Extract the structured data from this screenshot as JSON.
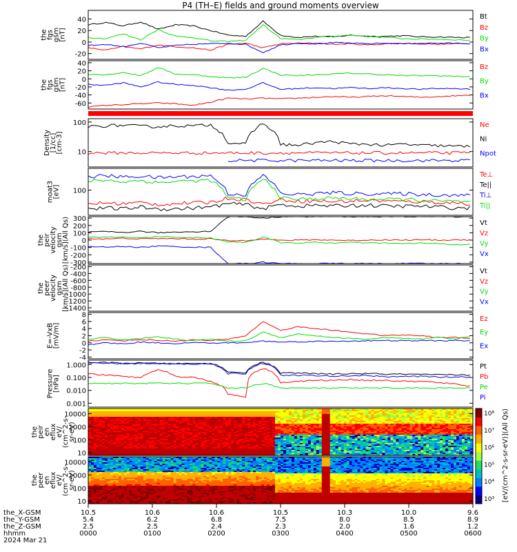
{
  "title": "P4 (TH–E) fields and ground moments overview",
  "colors": {
    "black": "#000000",
    "red": "#ff0000",
    "green": "#00dd00",
    "blue": "#0000ff"
  },
  "chart_data": [
    {
      "type": "line",
      "panel": "fgs_gsm_1",
      "ylabel": [
        "the",
        "fgs",
        "gsm",
        "[nT]"
      ],
      "yticks": [
        "40",
        "20",
        "0",
        "-20"
      ],
      "ylim": [
        -30,
        55
      ],
      "series": [
        {
          "name": "Bt",
          "color": "red_black",
          "values": [
            30,
            34,
            28,
            35,
            22,
            30,
            28,
            20,
            12,
            10,
            36,
            12,
            8,
            10,
            9,
            12,
            10,
            10,
            11,
            9,
            9,
            8,
            8
          ]
        },
        {
          "name": "Bz",
          "color": "red",
          "values": [
            -10,
            -14,
            -8,
            -12,
            -5,
            -8,
            -10,
            -14,
            -4,
            -2,
            -10,
            -3,
            -2,
            -2,
            -4,
            -3,
            -5,
            -3,
            -2,
            -3,
            -4,
            -3,
            -2
          ]
        },
        {
          "name": "By",
          "color": "green",
          "values": [
            8,
            6,
            14,
            4,
            22,
            10,
            8,
            2,
            1,
            3,
            30,
            6,
            4,
            8,
            10,
            12,
            10,
            8,
            6,
            5,
            5,
            4,
            3
          ]
        },
        {
          "name": "Bx",
          "color": "blue",
          "values": [
            -6,
            -4,
            -8,
            -2,
            -10,
            -6,
            -4,
            -3,
            -2,
            -4,
            -18,
            -5,
            -2,
            -3,
            -1,
            -2,
            -3,
            -2,
            -3,
            -2,
            -2,
            -2,
            -3
          ]
        }
      ],
      "legend": [
        "Bt",
        "Bz",
        "By",
        "Bx"
      ]
    },
    {
      "type": "line",
      "panel": "fgs_gsm_2",
      "ylabel": [
        "the",
        "fgs",
        "gsm",
        "[nT]"
      ],
      "yticks": [
        "40",
        "20",
        "0",
        "-20",
        "-40",
        "-60"
      ],
      "ylim": [
        -75,
        45
      ],
      "legend": [
        "Bz",
        "By",
        "Bx"
      ],
      "series": [
        {
          "name": "Bz",
          "values": [
            -70,
            -66,
            -64,
            -62,
            -60,
            -62,
            -66,
            -58,
            -48,
            -50,
            -48,
            -50,
            -48,
            -46,
            -44,
            -46,
            -44,
            -42,
            -44,
            -46,
            -44,
            -42,
            -40
          ]
        },
        {
          "name": "By",
          "values": [
            12,
            10,
            16,
            8,
            28,
            12,
            10,
            6,
            2,
            4,
            26,
            10,
            8,
            10,
            12,
            14,
            12,
            10,
            8,
            8,
            8,
            6,
            6
          ]
        },
        {
          "name": "Bx",
          "values": [
            -14,
            -16,
            -10,
            -20,
            -8,
            -14,
            -16,
            -22,
            -28,
            -26,
            -10,
            -26,
            -24,
            -22,
            -24,
            -22,
            -24,
            -22,
            -24,
            -26,
            -24,
            -24,
            -26
          ]
        }
      ]
    },
    {
      "type": "line",
      "panel": "density",
      "ylabel": [
        "Density",
        "[1/cc]",
        "[cm-3]"
      ],
      "log": true,
      "yticks": [
        "100",
        "10"
      ],
      "ylim": [
        3,
        130
      ],
      "legend": [
        "Ne",
        "Ni",
        "Npot"
      ],
      "series": [
        {
          "name": "Ne",
          "values": [
            9,
            9,
            9,
            9,
            9,
            9,
            9,
            9,
            9,
            9,
            9,
            9,
            9,
            9,
            9,
            9,
            9,
            9,
            9,
            9,
            9,
            9,
            9
          ]
        },
        {
          "name": "Ni",
          "values": [
            70,
            75,
            78,
            72,
            70,
            76,
            74,
            80,
            20,
            18,
            90,
            18,
            16,
            20,
            22,
            18,
            18,
            16,
            18,
            16,
            16,
            15,
            15
          ]
        },
        {
          "name": "Npot",
          "values": [
            null,
            null,
            null,
            null,
            null,
            null,
            null,
            null,
            5,
            5,
            5,
            5,
            5,
            5,
            5,
            5,
            5,
            5,
            5,
            5,
            5,
            5,
            5
          ]
        }
      ]
    },
    {
      "type": "line",
      "panel": "temperature",
      "ylabel": [
        "moat3",
        "[eV]"
      ],
      "log": true,
      "yticks": [
        "100"
      ],
      "ylim": [
        20,
        400
      ],
      "legend": [
        "Te⊥",
        "Te||",
        "Ti⊥",
        "Ti||"
      ],
      "series": [
        {
          "name": "Te⊥",
          "values": [
            42,
            44,
            42,
            45,
            40,
            42,
            44,
            46,
            60,
            55,
            40,
            55,
            50,
            50,
            48,
            50,
            52,
            50,
            48,
            48,
            46,
            44,
            42
          ]
        },
        {
          "name": "Te||",
          "values": [
            30,
            32,
            30,
            34,
            30,
            30,
            32,
            34,
            42,
            40,
            30,
            40,
            36,
            38,
            36,
            38,
            38,
            36,
            36,
            36,
            34,
            32,
            32
          ]
        },
        {
          "name": "Ti⊥",
          "values": [
            240,
            250,
            230,
            245,
            220,
            235,
            240,
            250,
            80,
            75,
            250,
            80,
            75,
            80,
            85,
            80,
            80,
            78,
            80,
            76,
            74,
            72,
            70
          ]
        },
        {
          "name": "Ti||",
          "values": [
            180,
            190,
            170,
            185,
            160,
            175,
            180,
            190,
            60,
            55,
            200,
            60,
            55,
            58,
            60,
            58,
            56,
            55,
            56,
            52,
            50,
            48,
            46
          ]
        }
      ]
    },
    {
      "type": "line",
      "panel": "pseudo_velocity",
      "ylabel": [
        "the",
        "peir",
        "velocity",
        "gsm",
        "[km/s](All Qs)"
      ],
      "yticks": [
        "300",
        "200",
        "100",
        "0",
        "-100",
        "-200",
        "-300"
      ],
      "ylim": [
        -320,
        320
      ],
      "legend": [
        "Vt",
        "Vz",
        "Vy",
        "Vx"
      ],
      "series": [
        {
          "name": "Vt",
          "values": [
            110,
            115,
            105,
            120,
            100,
            110,
            115,
            120,
            320,
            320,
            300,
            320,
            320,
            320,
            320,
            320,
            320,
            320,
            320,
            320,
            320,
            320,
            320
          ]
        },
        {
          "name": "Vz",
          "values": [
            20,
            15,
            25,
            18,
            22,
            20,
            15,
            18,
            -10,
            -5,
            20,
            -5,
            0,
            5,
            0,
            -5,
            0,
            5,
            0,
            5,
            0,
            5,
            0
          ]
        },
        {
          "name": "Vy",
          "values": [
            40,
            35,
            45,
            30,
            50,
            40,
            35,
            30,
            -20,
            -30,
            40,
            -30,
            -40,
            -30,
            -40,
            -30,
            -40,
            -40,
            -50,
            -40,
            -50,
            -60,
            -60
          ]
        },
        {
          "name": "Vx",
          "values": [
            -90,
            -95,
            -85,
            -100,
            -80,
            -90,
            -95,
            -100,
            -320,
            -320,
            -300,
            -320,
            -320,
            -320,
            -320,
            -320,
            -320,
            -320,
            -320,
            -320,
            -320,
            -320,
            -320
          ]
        }
      ]
    },
    {
      "type": "line",
      "panel": "peer_velocity",
      "ylabel": [
        "the",
        "peer",
        "velocity",
        "gsm",
        "[km/s](All Qs)"
      ],
      "yticks": [
        "-200",
        "-400",
        "-600",
        "-800",
        "-1000",
        "-1200",
        "-1400"
      ],
      "ylim": [
        -1500,
        -150
      ],
      "legend": [
        "Vt",
        "Vz",
        "Vy",
        "Vx"
      ],
      "series": []
    },
    {
      "type": "line",
      "panel": "efield",
      "ylabel": [
        "E=-VxB",
        "[mV/m]"
      ],
      "yticks": [
        "8",
        "6",
        "4",
        "2",
        "0",
        "-2",
        "-4"
      ],
      "ylim": [
        -4.5,
        8.5
      ],
      "legend": [
        "Ez",
        "Ey",
        "Ex"
      ],
      "series": [
        {
          "name": "Ez",
          "values": [
            0.5,
            0.8,
            0.6,
            0.9,
            0.7,
            0.5,
            0.8,
            0.6,
            1.0,
            2.0,
            6.0,
            3.5,
            4.5,
            4.0,
            3.5,
            3.0,
            2.5,
            2.0,
            2.2,
            2.0,
            1.5,
            1.5,
            1.2
          ]
        },
        {
          "name": "Ey",
          "values": [
            1.0,
            1.5,
            0.8,
            1.2,
            1.8,
            1.0,
            0.6,
            1.0,
            0.5,
            0.5,
            3.0,
            1.5,
            2.5,
            2.0,
            1.5,
            1.2,
            1.0,
            1.5,
            1.2,
            1.0,
            1.5,
            1.0,
            2.0
          ]
        },
        {
          "name": "Ex",
          "values": [
            -0.5,
            0.0,
            -0.3,
            0.2,
            0.0,
            -0.2,
            0.1,
            -0.1,
            0.0,
            0.0,
            0.5,
            0.2,
            0.3,
            0.4,
            0.4,
            0.5,
            0.6,
            0.6,
            0.6,
            0.6,
            0.6,
            0.6,
            0.6
          ]
        }
      ]
    },
    {
      "type": "line",
      "panel": "pressure",
      "ylabel": [
        "Pressure",
        "[nPa]"
      ],
      "log": true,
      "yticks": [
        "1.000",
        "0.100",
        "0.010",
        "0.001"
      ],
      "ylim": [
        0.0005,
        2.2
      ],
      "legend": [
        "Pt",
        "Pb",
        "Pe",
        "Pi"
      ],
      "series": [
        {
          "name": "Pt",
          "values": [
            1.5,
            1.4,
            1.3,
            1.3,
            1.25,
            1.2,
            1.2,
            1.25,
            0.25,
            0.25,
            1.5,
            0.22,
            0.22,
            0.2,
            0.18,
            0.2,
            0.2,
            0.18,
            0.18,
            0.17,
            0.16,
            0.16,
            0.15
          ]
        },
        {
          "name": "Pb",
          "values": [
            0.2,
            0.15,
            0.12,
            0.1,
            0.4,
            0.12,
            0.1,
            0.05,
            0.005,
            0.003,
            0.5,
            0.04,
            0.05,
            0.06,
            0.06,
            0.07,
            0.06,
            0.06,
            0.05,
            0.05,
            0.04,
            0.03,
            0.02
          ]
        },
        {
          "name": "Pe",
          "values": [
            0.035,
            0.035,
            0.035,
            0.035,
            0.035,
            0.035,
            0.035,
            0.035,
            0.015,
            0.015,
            0.035,
            0.015,
            0.015,
            0.015,
            0.015,
            0.015,
            0.015,
            0.015,
            0.015,
            0.015,
            0.015,
            0.015,
            0.015
          ]
        },
        {
          "name": "Pi",
          "values": [
            1.3,
            1.25,
            1.2,
            1.2,
            1.15,
            1.1,
            1.1,
            1.15,
            0.2,
            0.2,
            1.3,
            0.15,
            0.15,
            0.14,
            0.12,
            0.14,
            0.14,
            0.12,
            0.12,
            0.12,
            0.11,
            0.11,
            0.1
          ]
        }
      ]
    },
    {
      "type": "heatmap",
      "panel": "peir_eflux",
      "ylabel": [
        "the",
        "peir",
        "en",
        "eflux",
        "eV/",
        "(cm^2-s-",
        "sr-eV)"
      ],
      "yticks": [
        "10000",
        "1000",
        "100",
        "10"
      ]
    },
    {
      "type": "heatmap",
      "panel": "peer_eflux",
      "ylabel": [
        "the",
        "peer",
        "en",
        "eflux",
        "eV/",
        "(cm^2-s-",
        "sr-eV)"
      ],
      "yticks": [
        "10000",
        "1000",
        "100",
        "10"
      ]
    }
  ],
  "colorbar": {
    "ticks": [
      "10⁸",
      "10⁷",
      "10⁶",
      "10⁵",
      "10⁴",
      "10³"
    ],
    "label": "[eV/(cm^2-s-sr-eV)](All Qs)"
  },
  "xaxis": {
    "times": [
      "0000",
      "0100",
      "0200",
      "0300",
      "0400",
      "0500",
      "0600"
    ],
    "x_gsm": [
      "10.5",
      "10.6",
      "10.6",
      "10.5",
      "10.3",
      "10.0",
      "9.6"
    ],
    "y_gsm": [
      "5.4",
      "6.2",
      "6.8",
      "7.5",
      "8.0",
      "8.5",
      "8.9"
    ],
    "z_gsm": [
      "2.5",
      "2.5",
      "2.4",
      "2.3",
      "2.0",
      "1.6",
      "1.2"
    ],
    "row_labels": [
      "the_X-GSM",
      "the_Y-GSM",
      "the_Z-GSM",
      "hhmm"
    ],
    "date": "2024 Mar 21"
  }
}
